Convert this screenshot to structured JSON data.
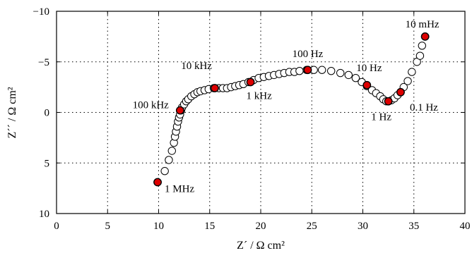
{
  "chart_data": {
    "type": "scatter",
    "xlabel": "Z´ / Ω cm²",
    "ylabel": "Z´´ / Ω cm²",
    "xlim": [
      0,
      40
    ],
    "ylim": [
      10,
      -10
    ],
    "xticks": [
      0,
      5,
      10,
      15,
      20,
      25,
      30,
      35,
      40
    ],
    "yticks": [
      10,
      5,
      0,
      -5,
      -10
    ],
    "xtick_labels": [
      "0",
      "5",
      "10",
      "15",
      "20",
      "25",
      "30",
      "35",
      "40"
    ],
    "ytick_labels": [
      "10",
      "5",
      "0",
      "−5",
      "−10"
    ],
    "grid": true,
    "point_fill": "#ffffff",
    "highlight_color": "#dd0000",
    "points": [
      {
        "x": 9.9,
        "y": 6.9
      },
      {
        "x": 10.6,
        "y": 5.8
      },
      {
        "x": 11.0,
        "y": 4.7
      },
      {
        "x": 11.3,
        "y": 3.8
      },
      {
        "x": 11.5,
        "y": 3.0
      },
      {
        "x": 11.6,
        "y": 2.4
      },
      {
        "x": 11.7,
        "y": 1.9
      },
      {
        "x": 11.8,
        "y": 1.4
      },
      {
        "x": 11.9,
        "y": 0.9
      },
      {
        "x": 12.0,
        "y": 0.5
      },
      {
        "x": 12.1,
        "y": 0.2
      },
      {
        "x": 12.2,
        "y": -0.2
      },
      {
        "x": 12.3,
        "y": -0.5
      },
      {
        "x": 12.5,
        "y": -0.8
      },
      {
        "x": 12.7,
        "y": -1.1
      },
      {
        "x": 12.9,
        "y": -1.3
      },
      {
        "x": 13.2,
        "y": -1.6
      },
      {
        "x": 13.5,
        "y": -1.8
      },
      {
        "x": 13.8,
        "y": -2.0
      },
      {
        "x": 14.1,
        "y": -2.1
      },
      {
        "x": 14.5,
        "y": -2.2
      },
      {
        "x": 14.9,
        "y": -2.3
      },
      {
        "x": 15.4,
        "y": -2.4
      },
      {
        "x": 15.9,
        "y": -2.4
      },
      {
        "x": 16.3,
        "y": -2.4
      },
      {
        "x": 16.7,
        "y": -2.4
      },
      {
        "x": 17.1,
        "y": -2.5
      },
      {
        "x": 17.5,
        "y": -2.6
      },
      {
        "x": 17.9,
        "y": -2.7
      },
      {
        "x": 18.3,
        "y": -2.8
      },
      {
        "x": 18.8,
        "y": -3.0
      },
      {
        "x": 19.3,
        "y": -3.2
      },
      {
        "x": 19.8,
        "y": -3.4
      },
      {
        "x": 20.3,
        "y": -3.5
      },
      {
        "x": 20.8,
        "y": -3.6
      },
      {
        "x": 21.3,
        "y": -3.7
      },
      {
        "x": 21.8,
        "y": -3.8
      },
      {
        "x": 22.3,
        "y": -3.9
      },
      {
        "x": 22.8,
        "y": -4.0
      },
      {
        "x": 23.3,
        "y": -4.0
      },
      {
        "x": 23.8,
        "y": -4.1
      },
      {
        "x": 24.5,
        "y": -4.2
      },
      {
        "x": 25.2,
        "y": -4.2
      },
      {
        "x": 26.0,
        "y": -4.2
      },
      {
        "x": 26.9,
        "y": -4.1
      },
      {
        "x": 27.8,
        "y": -3.9
      },
      {
        "x": 28.6,
        "y": -3.7
      },
      {
        "x": 29.3,
        "y": -3.4
      },
      {
        "x": 29.9,
        "y": -3.0
      },
      {
        "x": 30.4,
        "y": -2.6
      },
      {
        "x": 30.9,
        "y": -2.2
      },
      {
        "x": 31.3,
        "y": -1.9
      },
      {
        "x": 31.7,
        "y": -1.6
      },
      {
        "x": 32.0,
        "y": -1.3
      },
      {
        "x": 32.3,
        "y": -1.1
      },
      {
        "x": 32.5,
        "y": -1.1
      },
      {
        "x": 32.8,
        "y": -1.2
      },
      {
        "x": 33.1,
        "y": -1.4
      },
      {
        "x": 33.4,
        "y": -1.7
      },
      {
        "x": 33.7,
        "y": -2.0
      },
      {
        "x": 34.0,
        "y": -2.5
      },
      {
        "x": 34.4,
        "y": -3.1
      },
      {
        "x": 34.8,
        "y": -4.0
      },
      {
        "x": 35.3,
        "y": -5.0
      },
      {
        "x": 35.6,
        "y": -5.6
      },
      {
        "x": 35.8,
        "y": -6.6
      },
      {
        "x": 36.1,
        "y": -7.5
      }
    ],
    "highlighted": [
      {
        "x": 9.9,
        "y": 6.9,
        "label": "1 MHz"
      },
      {
        "x": 12.1,
        "y": -0.2,
        "label": "100 kHz"
      },
      {
        "x": 15.5,
        "y": -2.4,
        "label": "10 kHz"
      },
      {
        "x": 19.0,
        "y": -3.0,
        "label": "1 kHz"
      },
      {
        "x": 24.6,
        "y": -4.2,
        "label": "100 Hz"
      },
      {
        "x": 30.4,
        "y": -2.7,
        "label": "10 Hz"
      },
      {
        "x": 32.5,
        "y": -1.1,
        "label": "1 Hz"
      },
      {
        "x": 33.7,
        "y": -2.0,
        "label": "0.1 Hz"
      },
      {
        "x": 36.1,
        "y": -7.5,
        "label": "10 mHz"
      }
    ]
  }
}
